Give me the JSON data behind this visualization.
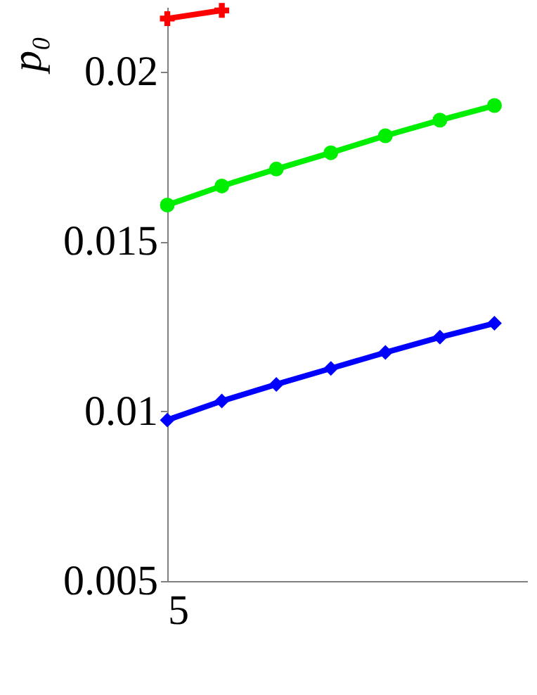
{
  "chart_data": {
    "type": "line",
    "ylabel": "p₀",
    "categories": [
      "5",
      null,
      null,
      null,
      null,
      null,
      null
    ],
    "series": [
      {
        "color": "#ff0000",
        "marker": "cross",
        "values": [
          0.02156,
          0.0218,
          null,
          null,
          null,
          null,
          null
        ]
      },
      {
        "color": "#00ee00",
        "marker": "circle",
        "values": [
          0.01607,
          0.01663,
          0.01713,
          0.01761,
          0.01811,
          0.01857,
          0.019
        ]
      },
      {
        "color": "#0000ff",
        "marker": "diamond",
        "values": [
          0.00974,
          0.0103,
          0.01079,
          0.01126,
          0.01173,
          0.01218,
          0.01259
        ]
      }
    ],
    "ylim": [
      0.005,
      0.0219
    ],
    "yticks": [
      0.005,
      0.01,
      0.015,
      0.02
    ],
    "grid": false
  }
}
